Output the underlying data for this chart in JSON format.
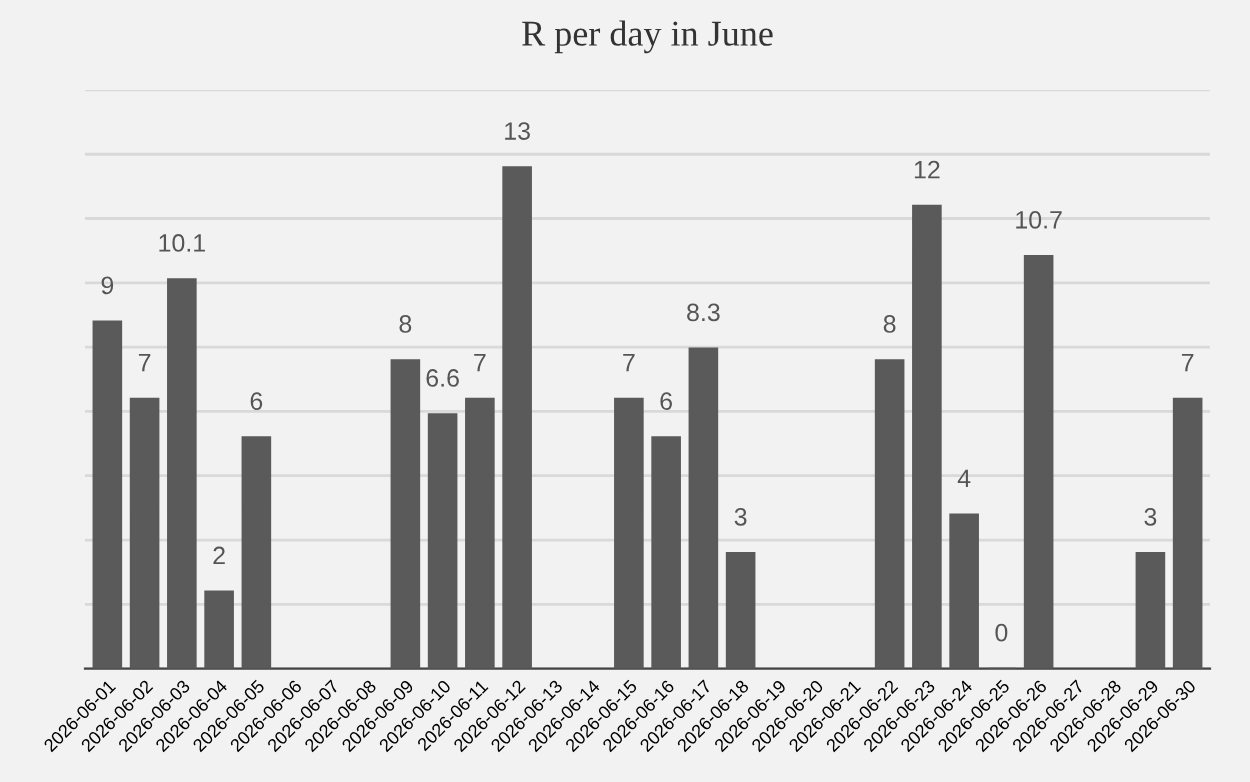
{
  "chart_data": {
    "type": "bar",
    "title": "R per day in June",
    "categories": [
      "2026-06-01",
      "2026-06-02",
      "2026-06-03",
      "2026-06-04",
      "2026-06-05",
      "2026-06-06",
      "2026-06-07",
      "2026-06-08",
      "2026-06-09",
      "2026-06-10",
      "2026-06-11",
      "2026-06-12",
      "2026-06-13",
      "2026-06-14",
      "2026-06-15",
      "2026-06-16",
      "2026-06-17",
      "2026-06-18",
      "2026-06-19",
      "2026-06-20",
      "2026-06-21",
      "2026-06-22",
      "2026-06-23",
      "2026-06-24",
      "2026-06-25",
      "2026-06-26",
      "2026-06-27",
      "2026-06-28",
      "2026-06-29",
      "2026-06-30"
    ],
    "values": [
      9,
      7,
      10.1,
      2,
      6,
      null,
      null,
      null,
      8,
      6.6,
      7,
      13,
      null,
      null,
      7,
      6,
      8.3,
      3,
      null,
      null,
      null,
      8,
      12,
      4,
      0,
      10.7,
      null,
      null,
      3,
      7
    ],
    "color": "#5a5a5a",
    "ylim": [
      0,
      15
    ],
    "yticks": [
      {
        "value": 0,
        "label": null
      },
      {
        "value": 1.667,
        "label": null
      },
      {
        "value": 3.333,
        "label": null
      },
      {
        "value": 5,
        "label": null
      },
      {
        "value": 6.667,
        "label": null
      },
      {
        "value": 8.333,
        "label": null
      },
      {
        "value": 10,
        "label": null
      },
      {
        "value": 11.667,
        "label": null
      },
      {
        "value": 13.333,
        "label": null
      },
      {
        "value": 15,
        "label": null
      }
    ],
    "tick_labels": "x",
    "grid": "y",
    "data_labels": true,
    "legend": false
  }
}
